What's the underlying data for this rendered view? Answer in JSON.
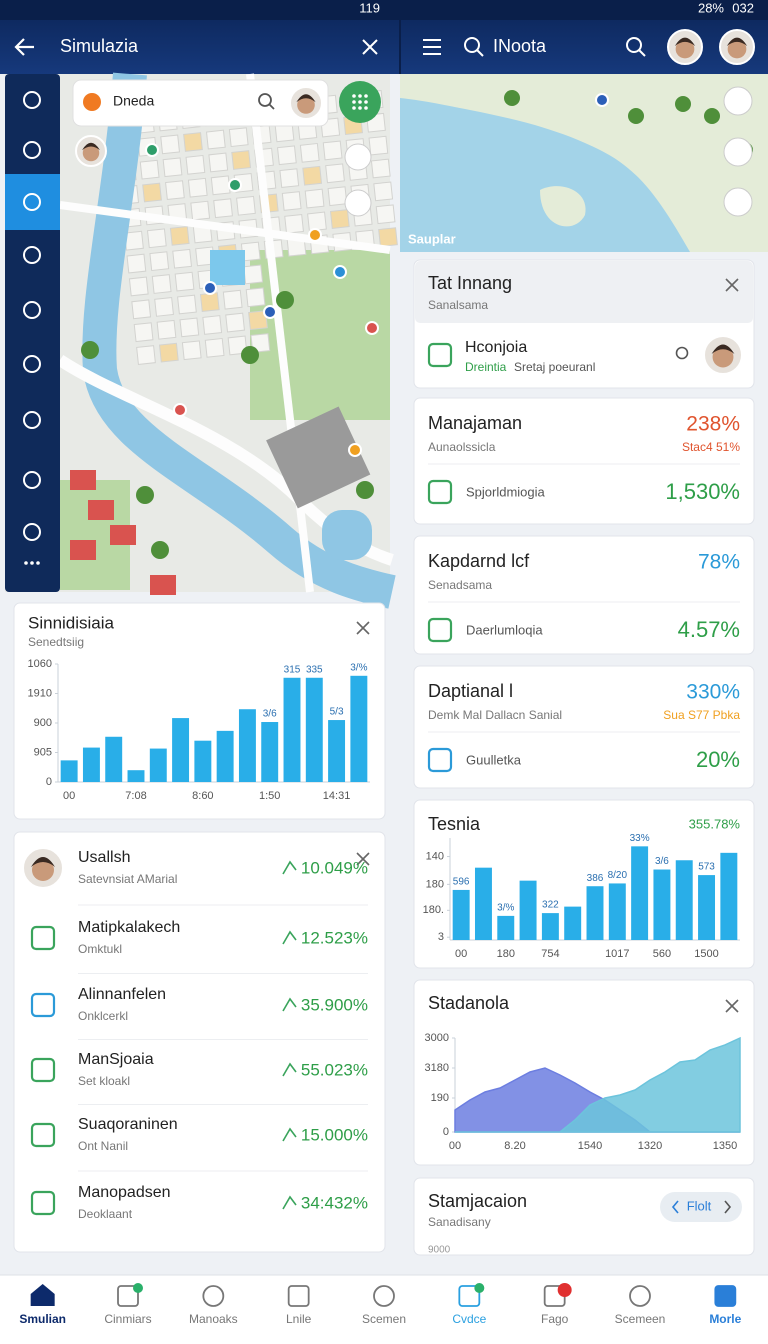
{
  "status_bar": {
    "left": "119",
    "battery": "28%",
    "time": "032"
  },
  "left_header": {
    "title": "Simulazia"
  },
  "right_header": {
    "title": "INoota"
  },
  "map": {
    "search": "Dneda"
  },
  "right_map": {
    "label": "Sauplar"
  },
  "chart_data": [
    {
      "type": "bar",
      "title": "Sinnidisiaia",
      "subtitle": "Senedtsiig",
      "color": "#29aee8",
      "categories": [
        "00",
        null,
        null,
        "7:08",
        null,
        null,
        "8:60",
        null,
        null,
        "1:50",
        null,
        null,
        "14:31",
        null
      ],
      "values": [
        220,
        350,
        460,
        120,
        340,
        650,
        420,
        520,
        740,
        610,
        1060,
        1060,
        630,
        1080
      ],
      "bar_labels": [
        null,
        null,
        null,
        null,
        null,
        null,
        null,
        null,
        null,
        "3/6",
        "315",
        "335",
        "5/3",
        "3/%"
      ],
      "ylim": [
        0,
        1200
      ],
      "yticks": [
        0,
        {
          "value": 300,
          "label": "905"
        },
        {
          "value": 600,
          "label": "900"
        },
        {
          "value": 900,
          "label": "1910"
        },
        {
          "value": 1200,
          "label": "1060"
        }
      ],
      "grid": false
    },
    {
      "type": "bar",
      "title": "Tesnia",
      "headline_value": "355.78%",
      "color": "#29aee8",
      "categories": [
        "00",
        null,
        "180",
        null,
        "754",
        null,
        null,
        "1017",
        null,
        "560",
        null,
        "1500",
        null
      ],
      "values": [
        54,
        78,
        26,
        64,
        29,
        36,
        58,
        61,
        101,
        76,
        86,
        70,
        94
      ],
      "bar_labels": [
        "596",
        null,
        "3/%",
        null,
        "322",
        null,
        "386",
        "8/20",
        "33%",
        "3/6",
        null,
        "573",
        null
      ],
      "ylim": [
        0,
        110
      ],
      "yticks": [
        3,
        {
          "value": 32,
          "label": "180."
        },
        {
          "value": 60,
          "label": "180"
        },
        {
          "value": 90,
          "label": "140"
        }
      ],
      "grid": false
    },
    {
      "type": "area",
      "title": "Stadanola",
      "categories": [
        "00",
        null,
        null,
        null,
        "8.20",
        null,
        null,
        null,
        null,
        "1540",
        null,
        null,
        null,
        "1320",
        null,
        null,
        null,
        null,
        "1350",
        null
      ],
      "series": [
        {
          "color": "#6c7ee0",
          "values": [
            702,
            1021,
            1277,
            1404,
            1660,
            1915,
            2043,
            1819,
            1564,
            1277,
            1021,
            702,
            383,
            0,
            0,
            0,
            0,
            0,
            0,
            0
          ]
        },
        {
          "color": "#6cc4dc",
          "values": [
            0,
            0,
            0,
            0,
            0,
            0,
            0,
            0,
            383,
            862,
            1085,
            1181,
            1340,
            1660,
            1915,
            2234,
            2298,
            2617,
            2777,
            3000
          ]
        }
      ],
      "ylim": [
        0,
        3000
      ],
      "yticks": [
        0,
        {
          "value": 1085,
          "label": "190"
        },
        {
          "value": 2043,
          "label": "3180"
        },
        3000
      ],
      "grid": false
    }
  ],
  "list": {
    "items": [
      {
        "title": "Usallsh",
        "subtitle": "Satevnsiat AMarial",
        "value": "10.049%"
      },
      {
        "title": "Matipkalakech",
        "subtitle": "Omktukl",
        "value": "12.523%"
      },
      {
        "title": "Alinnanfelen",
        "subtitle": "Onklcerkl",
        "value": "35.900%"
      },
      {
        "title": "ManSjoaia",
        "subtitle": "Set kloakl",
        "value": "55.023%"
      },
      {
        "title": "Suaqoraninen",
        "subtitle": "Ont Nanil",
        "value": "15.000%"
      },
      {
        "title": "Manopadsen",
        "subtitle": "Deoklaant",
        "value": "34:432%"
      }
    ]
  },
  "cards": [
    {
      "title": "Tat Innang",
      "subtitle": "Sanalsama",
      "item_title": "Hconjoia",
      "item_status": "Dreintia",
      "item_detail": "Sretaj poeuranl"
    },
    {
      "title": "Manajaman",
      "subtitle": "Aunaolssicla",
      "value": "238%",
      "value_note": "Stac4 51%",
      "item_title": "Spjorldmiogia",
      "item_value": "1,530%"
    },
    {
      "title": "Kapdarnd lcf",
      "subtitle": "Senadsama",
      "value": "78%",
      "item_title": "Daerlumloqia",
      "item_value": "4.57%"
    },
    {
      "title": "Daptianal l",
      "subtitle": "Demk Mal Dallacn Sanial",
      "value": "330%",
      "value_note": "Sua S77 Pbka",
      "item_title": "Guulletka",
      "item_value": "20%"
    },
    {
      "title": "Stamjacaion",
      "subtitle": "Sanadisany",
      "button": "Flolt",
      "axis_label": "9000"
    }
  ],
  "bottom_nav": [
    "Smulian",
    "Cinmiars",
    "Manoaks",
    "Lnile",
    "Scemen",
    "Cvdce",
    "Fago",
    "Scemeen",
    "Morle"
  ]
}
